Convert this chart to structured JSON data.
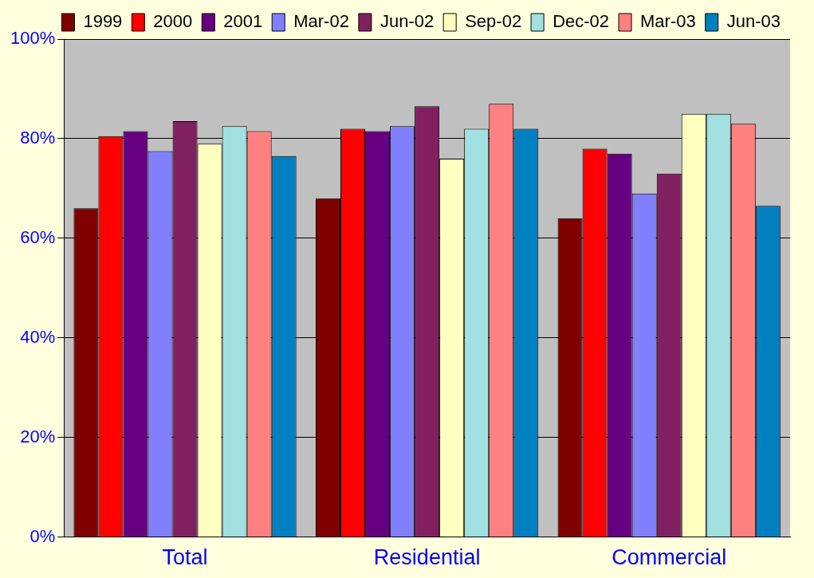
{
  "chart_data": {
    "type": "bar",
    "categories": [
      "Total",
      "Residential",
      "Commercial"
    ],
    "series": [
      {
        "name": "1999",
        "color": "#800000",
        "values": [
          66,
          68,
          64
        ]
      },
      {
        "name": "2000",
        "color": "#ff0000",
        "values": [
          80.5,
          82,
          78
        ]
      },
      {
        "name": "2001",
        "color": "#660080",
        "values": [
          81.5,
          81.5,
          77
        ]
      },
      {
        "name": "Mar-02",
        "color": "#8080ff",
        "values": [
          77.5,
          82.5,
          69
        ]
      },
      {
        "name": "Jun-02",
        "color": "#802060",
        "values": [
          83.5,
          86.5,
          73
        ]
      },
      {
        "name": "Sep-02",
        "color": "#ffffc0",
        "values": [
          79,
          76,
          85
        ]
      },
      {
        "name": "Dec-02",
        "color": "#a0e0e0",
        "values": [
          82.5,
          82,
          85
        ]
      },
      {
        "name": "Mar-03",
        "color": "#ff8080",
        "values": [
          81.5,
          87,
          83
        ]
      },
      {
        "name": "Jun-03",
        "color": "#0080c0",
        "values": [
          76.5,
          82,
          66.5
        ]
      }
    ],
    "ylim": [
      0,
      100
    ],
    "yticks": [
      {
        "value": 0,
        "label": "0%"
      },
      {
        "value": 20,
        "label": "20%"
      },
      {
        "value": 40,
        "label": "40%"
      },
      {
        "value": 60,
        "label": "60%"
      },
      {
        "value": 80,
        "label": "80%"
      },
      {
        "value": 100,
        "label": "100%"
      }
    ],
    "grid": "y",
    "legend": "top right"
  }
}
